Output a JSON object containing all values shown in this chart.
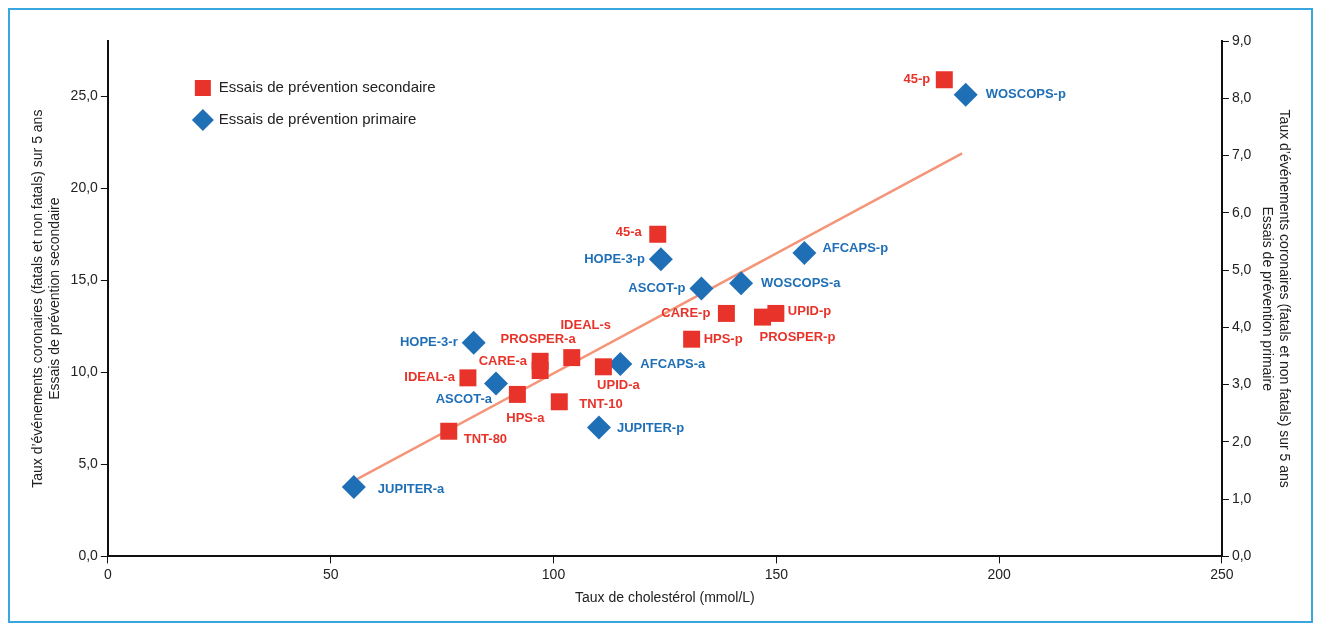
{
  "chart_data": {
    "type": "scatter",
    "xlabel": "Taux de cholestérol (mmol/L)",
    "ylabel": "Taux d’événements coronaires (fatals et non fatals) sur 5 ans\nEssais de prévention secondaire",
    "y2label": "Taux d’événements coronaires (fatals et non fatals) sur 5 ans\nEssais de prévention primaire",
    "xlim": [
      0,
      250
    ],
    "xticks": [
      0,
      50,
      100,
      150,
      200,
      250
    ],
    "ylim": [
      0,
      28
    ],
    "yticks": [
      {
        "value": 0,
        "label": "0,0"
      },
      {
        "value": 5,
        "label": "5,0"
      },
      {
        "value": 10,
        "label": "10,0"
      },
      {
        "value": 15,
        "label": "15,0"
      },
      {
        "value": 20,
        "label": "20,0"
      },
      {
        "value": 25,
        "label": "25,0"
      }
    ],
    "y2lim": [
      0,
      9
    ],
    "y2ticks": [
      {
        "value": 0,
        "label": "0,0"
      },
      {
        "value": 1,
        "label": "1,0"
      },
      {
        "value": 2,
        "label": "2,0"
      },
      {
        "value": 3,
        "label": "3,0"
      },
      {
        "value": 4,
        "label": "4,0"
      },
      {
        "value": 5,
        "label": "5,0"
      },
      {
        "value": 6,
        "label": "6,0"
      },
      {
        "value": 7,
        "label": "7,0"
      },
      {
        "value": 8,
        "label": "8,0"
      },
      {
        "value": 9,
        "label": "9,0"
      }
    ],
    "grid": false,
    "legend": "top left",
    "annotations": [
      {
        "text": "45-p",
        "x": 187.7,
        "y": 25.9
      },
      {
        "text": "45-a",
        "x": 123.4,
        "y": 17.5
      },
      {
        "text": "CARE-p",
        "x": 138.8,
        "y": 13.2
      },
      {
        "text": "UPID-p",
        "x": 149.9,
        "y": 13.2
      },
      {
        "text": "PROSPER-p",
        "x": 146.9,
        "y": 13.0
      },
      {
        "text": "HPS-p",
        "x": 131.0,
        "y": 11.8
      },
      {
        "text": "IDEAL-s",
        "x": 104.1,
        "y": 10.8
      },
      {
        "text": "PROSPER-a",
        "x": 97.0,
        "y": 10.6
      },
      {
        "text": "CARE-a",
        "x": 97.0,
        "y": 10.1
      },
      {
        "text": "UPID-a",
        "x": 111.2,
        "y": 10.3
      },
      {
        "text": "IDEAL-a",
        "x": 80.8,
        "y": 9.7
      },
      {
        "text": "HPS-a",
        "x": 91.9,
        "y": 8.8
      },
      {
        "text": "TNT-10",
        "x": 101.3,
        "y": 8.4
      },
      {
        "text": "TNT-80",
        "x": 76.5,
        "y": 6.8
      },
      {
        "text": "WOSCOPS-p",
        "x": 192.5,
        "y": 25.08
      },
      {
        "text": "AFCAPS-p",
        "x": 156.3,
        "y": 16.49
      },
      {
        "text": "HOPE-3-p",
        "x": 124.1,
        "y": 16.15
      },
      {
        "text": "WOSCOPS-a",
        "x": 142.1,
        "y": 14.84
      },
      {
        "text": "ASCOT-p",
        "x": 133.2,
        "y": 14.56
      },
      {
        "text": "HOPE-3-r",
        "x": 82.1,
        "y": 11.6
      },
      {
        "text": "AFCAPS-a",
        "x": 115.0,
        "y": 10.45
      },
      {
        "text": "ASCOT-a",
        "x": 87.1,
        "y": 9.4
      },
      {
        "text": "JUPITER-p",
        "x": 110.2,
        "y": 7.0
      },
      {
        "text": "JUPITER-a",
        "x": 55.2,
        "y": 3.76
      }
    ],
    "series": [
      {
        "name": "Essais de prévention secondaire",
        "color": "#e8332a",
        "marker": "square",
        "x": [
          187.7,
          123.4,
          138.8,
          149.9,
          146.9,
          131.0,
          104.1,
          97.0,
          97.0,
          111.2,
          80.8,
          91.9,
          101.3,
          76.5
        ],
        "values": [
          25.9,
          17.5,
          13.2,
          13.2,
          13.0,
          11.8,
          10.8,
          10.6,
          10.1,
          10.3,
          9.7,
          8.8,
          8.4,
          6.8
        ]
      },
      {
        "name": "Essais de prévention primaire",
        "color": "#1f6fb7",
        "marker": "diamond",
        "axis": "y2",
        "x": [
          192.5,
          156.3,
          124.1,
          142.1,
          133.2,
          82.1,
          115.0,
          87.1,
          110.2,
          55.2
        ],
        "values": [
          8.06,
          5.3,
          5.19,
          4.77,
          4.68,
          3.73,
          3.36,
          3.02,
          2.25,
          1.21
        ]
      },
      {
        "type": "line",
        "color": "#f4957a",
        "marker": "none",
        "x": [
          55.2,
          191.7
        ],
        "values": [
          4.1,
          21.9
        ]
      }
    ]
  }
}
